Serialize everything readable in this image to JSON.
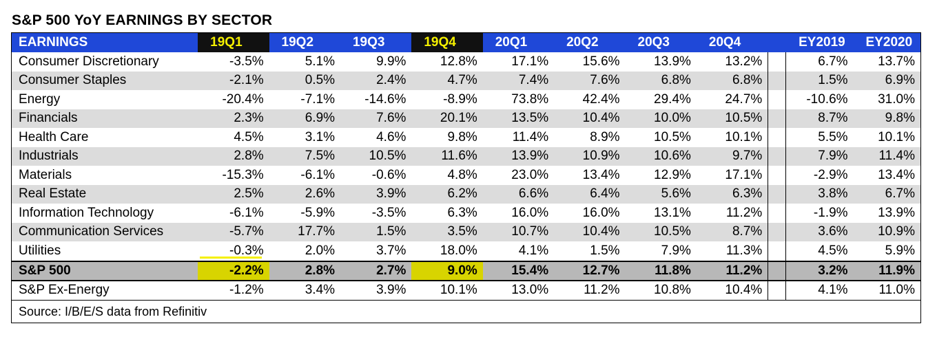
{
  "title": "S&P 500 YoY EARNINGS BY SECTOR",
  "header": {
    "label": "EARNINGS",
    "quarters": [
      "19Q1",
      "19Q2",
      "19Q3",
      "19Q4",
      "20Q1",
      "20Q2",
      "20Q3",
      "20Q4"
    ],
    "years": [
      "EY2019",
      "EY2020"
    ]
  },
  "rows": [
    {
      "label": "Consumer Discretionary",
      "q": [
        "-3.5%",
        "5.1%",
        "9.9%",
        "12.8%",
        "17.1%",
        "15.6%",
        "13.9%",
        "13.2%"
      ],
      "ey": [
        "6.7%",
        "13.7%"
      ]
    },
    {
      "label": "Consumer Staples",
      "q": [
        "-2.1%",
        "0.5%",
        "2.4%",
        "4.7%",
        "7.4%",
        "7.6%",
        "6.8%",
        "6.8%"
      ],
      "ey": [
        "1.5%",
        "6.9%"
      ]
    },
    {
      "label": "Energy",
      "q": [
        "-20.4%",
        "-7.1%",
        "-14.6%",
        "-8.9%",
        "73.8%",
        "42.4%",
        "29.4%",
        "24.7%"
      ],
      "ey": [
        "-10.6%",
        "31.0%"
      ]
    },
    {
      "label": "Financials",
      "q": [
        "2.3%",
        "6.9%",
        "7.6%",
        "20.1%",
        "13.5%",
        "10.4%",
        "10.0%",
        "10.5%"
      ],
      "ey": [
        "8.7%",
        "9.8%"
      ]
    },
    {
      "label": "Health Care",
      "q": [
        "4.5%",
        "3.1%",
        "4.6%",
        "9.8%",
        "11.4%",
        "8.9%",
        "10.5%",
        "10.1%"
      ],
      "ey": [
        "5.5%",
        "10.1%"
      ]
    },
    {
      "label": "Industrials",
      "q": [
        "2.8%",
        "7.5%",
        "10.5%",
        "11.6%",
        "13.9%",
        "10.9%",
        "10.6%",
        "9.7%"
      ],
      "ey": [
        "7.9%",
        "11.4%"
      ]
    },
    {
      "label": "Materials",
      "q": [
        "-15.3%",
        "-6.1%",
        "-0.6%",
        "4.8%",
        "23.0%",
        "13.4%",
        "12.9%",
        "17.1%"
      ],
      "ey": [
        "-2.9%",
        "13.4%"
      ]
    },
    {
      "label": "Real Estate",
      "q": [
        "2.5%",
        "2.6%",
        "3.9%",
        "6.2%",
        "6.6%",
        "6.4%",
        "5.6%",
        "6.3%"
      ],
      "ey": [
        "3.8%",
        "6.7%"
      ]
    },
    {
      "label": "Information Technology",
      "q": [
        "-6.1%",
        "-5.9%",
        "-3.5%",
        "6.3%",
        "16.0%",
        "16.0%",
        "13.1%",
        "11.2%"
      ],
      "ey": [
        "-1.9%",
        "13.9%"
      ]
    },
    {
      "label": "Communication Services",
      "q": [
        "-5.7%",
        "17.7%",
        "1.5%",
        "3.5%",
        "10.7%",
        "10.4%",
        "10.5%",
        "8.7%"
      ],
      "ey": [
        "3.6%",
        "10.9%"
      ]
    },
    {
      "label": "Utilities",
      "q": [
        "-0.3%",
        "2.0%",
        "3.7%",
        "18.0%",
        "4.1%",
        "1.5%",
        "7.9%",
        "11.3%"
      ],
      "ey": [
        "4.5%",
        "5.9%"
      ]
    }
  ],
  "total": {
    "label": "S&P 500",
    "q": [
      "-2.2%",
      "2.8%",
      "2.7%",
      "9.0%",
      "15.4%",
      "12.7%",
      "11.8%",
      "11.2%"
    ],
    "ey": [
      "3.2%",
      "11.9%"
    ]
  },
  "ex_energy": {
    "label": "S&P Ex-Energy",
    "q": [
      "-1.2%",
      "3.4%",
      "3.9%",
      "10.1%",
      "13.0%",
      "11.2%",
      "10.8%",
      "10.4%"
    ],
    "ey": [
      "4.1%",
      "11.0%"
    ]
  },
  "source": "Source: I/B/E/S data from Refinitiv",
  "colors": {
    "header_bg": "#1f48d8",
    "highlight": "#f5f000",
    "alt_row": "#dcdcdc",
    "total_row": "#b8b8b8"
  }
}
